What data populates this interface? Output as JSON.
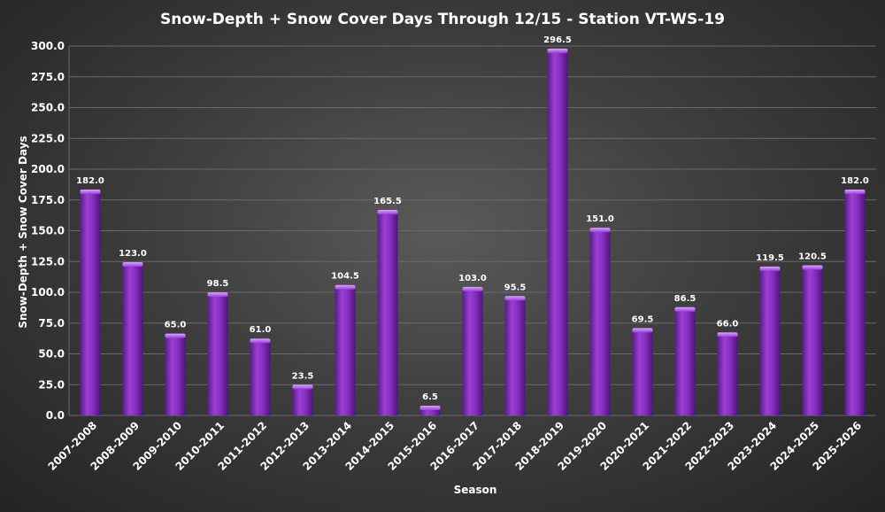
{
  "chart_data": {
    "type": "bar",
    "title": "Snow-Depth  + Snow Cover Days Through  12/15 - Station  VT-WS-19",
    "xlabel": "Season",
    "ylabel": "Snow-Depth + Snow Cover Days",
    "ylim": [
      0,
      300
    ],
    "ytick_step": 25,
    "grid": true,
    "bar_color": "#8a2fc7",
    "categories": [
      "2007-2008",
      "2008-2009",
      "2009-2010",
      "2010-2011",
      "2011-2012",
      "2012-2013",
      "2013-2014",
      "2014-2015",
      "2015-2016",
      "2016-2017",
      "2017-2018",
      "2018-2019",
      "2019-2020",
      "2020-2021",
      "2021-2022",
      "2022-2023",
      "2023-2024",
      "2024-2025",
      "2025-2026"
    ],
    "values": [
      182.0,
      123.0,
      65.0,
      98.5,
      61.0,
      23.5,
      104.5,
      165.5,
      6.5,
      103.0,
      95.5,
      296.5,
      151.0,
      69.5,
      86.5,
      66.0,
      119.5,
      120.5,
      182.0
    ]
  }
}
